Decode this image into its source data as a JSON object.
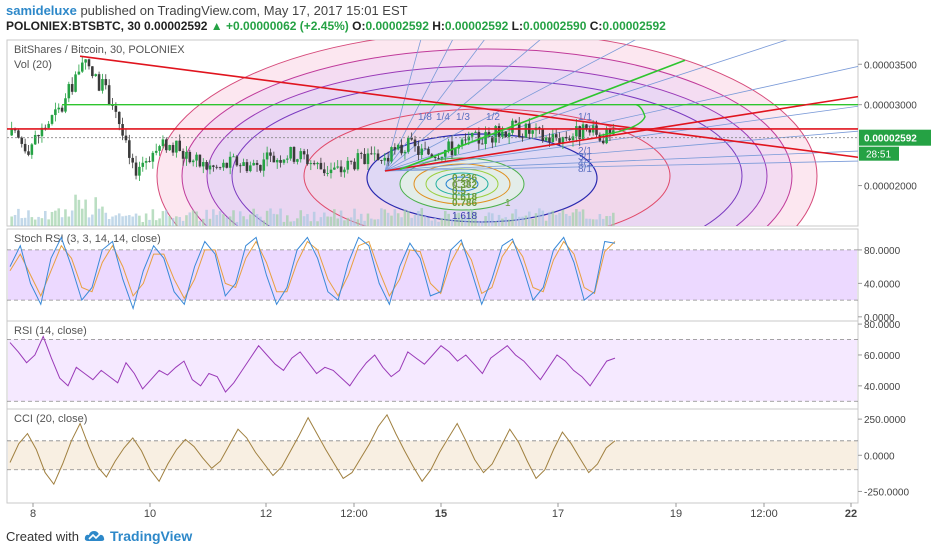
{
  "header": {
    "user": "samideluxe",
    "published_text": "published on TradingView.com, May 17, 2017 15:01 EST",
    "symbol": "POLONIEX:BTSBTC, 30",
    "price": "0.00002592",
    "change": "+0.00000062 (+2.45%)",
    "o_label": "O:",
    "o": "0.00002592",
    "h_label": "H:",
    "h": "0.00002592",
    "l_label": "L:",
    "l": "0.00002590",
    "c_label": "C:",
    "c": "0.00002592"
  },
  "footer": {
    "created": "Created with",
    "brand": "TradingView"
  },
  "colors": {
    "up": "#25a244",
    "down": "#3a3a3a",
    "accent": "#2d88c9",
    "trend_red": "#e0141e",
    "trend_green": "#2ec52e",
    "stoch_band": "#e6ccff",
    "rsi_band": "#f2e2ff",
    "cci_band": "#f5ead8"
  },
  "chart_data": [
    {
      "type": "candlestick",
      "title": "BitShares / Bitcoin, 30, POLONIEX",
      "subtitle": "Vol (20)",
      "y_ticks": [
        "0.00003500",
        "0.00003000",
        "0.00002000"
      ],
      "ylim": [
        1.5e-05,
        3.8e-05
      ],
      "last_price_label": "0.00002592",
      "countdown_label": "28:51",
      "last_price": 2.592e-05,
      "x_ticks": [
        "8",
        "10",
        "12",
        "12:00",
        "15",
        "17",
        "19",
        "12:00",
        "22"
      ],
      "horizontal_levels": [
        3e-05,
        2.7e-05
      ],
      "fan_labels": [
        "1/8",
        "1/4",
        "1/3",
        "1/2",
        "1/1",
        "2/1",
        "3/1",
        "4/1",
        "8/1"
      ],
      "fib_labels": [
        "0.236",
        "0.382",
        "0.5",
        "0.618",
        "0.786",
        "1",
        "1.618"
      ],
      "series_close": [
        2.62e-05,
        2.48e-05,
        2.75e-05,
        2.98e-05,
        3.52e-05,
        3.3e-05,
        3e-05,
        2.18e-05,
        2.38e-05,
        2.52e-05,
        2.4e-05,
        2.26e-05,
        2.21e-05,
        2.3e-05,
        2.25e-05,
        2.32e-05,
        2.4e-05,
        2.36e-05,
        2.22e-05,
        2.18e-05,
        2.31e-05,
        2.29e-05,
        2.36e-05,
        2.5e-05,
        2.4e-05,
        2.44e-05,
        2.48e-05,
        2.57e-05,
        2.62e-05,
        2.72e-05,
        2.68e-05,
        2.59e-05,
        2.6e-05,
        2.66e-05,
        2.63e-05,
        2.59e-05
      ]
    },
    {
      "type": "line",
      "title": "Stoch RSI (3, 3, 14, 14, close)",
      "y_ticks": [
        "80.0000",
        "40.0000",
        "0.0000"
      ],
      "ylim": [
        -5,
        105
      ],
      "band": [
        20,
        80
      ],
      "k": [
        60,
        85,
        40,
        15,
        70,
        95,
        60,
        20,
        35,
        80,
        90,
        45,
        10,
        55,
        85,
        70,
        30,
        15,
        60,
        90,
        75,
        25,
        40,
        85,
        95,
        50,
        15,
        35,
        80,
        95,
        70,
        30,
        20,
        65,
        95,
        85,
        40,
        15,
        60,
        88,
        70,
        25,
        30,
        80,
        92,
        55,
        15,
        45,
        85,
        93,
        60,
        20,
        35,
        80,
        95,
        65,
        20,
        30,
        90,
        88
      ],
      "d": [
        55,
        75,
        50,
        25,
        55,
        85,
        70,
        35,
        30,
        65,
        85,
        60,
        25,
        40,
        75,
        75,
        45,
        22,
        45,
        80,
        80,
        40,
        35,
        70,
        90,
        65,
        30,
        30,
        65,
        90,
        80,
        45,
        25,
        50,
        85,
        90,
        55,
        25,
        45,
        80,
        78,
        40,
        28,
        65,
        88,
        68,
        28,
        35,
        72,
        90,
        72,
        35,
        30,
        68,
        90,
        75,
        35,
        28,
        78,
        90
      ]
    },
    {
      "type": "line",
      "title": "RSI (14, close)",
      "y_ticks": [
        "80.0000",
        "60.0000",
        "40.0000"
      ],
      "ylim": [
        25,
        82
      ],
      "band": [
        30,
        70
      ],
      "values": [
        68,
        62,
        55,
        60,
        72,
        58,
        45,
        40,
        52,
        48,
        44,
        50,
        46,
        42,
        55,
        48,
        38,
        44,
        50,
        47,
        52,
        56,
        44,
        40,
        48,
        46,
        36,
        42,
        50,
        58,
        66,
        60,
        54,
        50,
        58,
        62,
        55,
        48,
        52,
        50,
        45,
        40,
        48,
        55,
        60,
        52,
        46,
        50,
        62,
        58,
        54,
        60,
        66,
        62,
        56,
        60,
        54,
        48,
        58,
        62,
        66,
        60,
        56,
        50,
        44,
        52,
        60,
        56,
        50,
        46,
        40,
        48,
        56,
        58
      ]
    },
    {
      "type": "line",
      "title": "CCI (20, close)",
      "y_ticks": [
        "250.0000",
        "0.0000",
        "-250.0000"
      ],
      "ylim": [
        -330,
        320
      ],
      "band": [
        -100,
        100
      ],
      "values": [
        -50,
        80,
        150,
        40,
        -120,
        -200,
        -60,
        100,
        220,
        60,
        -80,
        -150,
        -40,
        50,
        120,
        30,
        -100,
        -180,
        -60,
        40,
        110,
        60,
        -20,
        -90,
        -40,
        70,
        180,
        120,
        20,
        -60,
        -140,
        -80,
        30,
        140,
        260,
        150,
        40,
        -60,
        -160,
        -120,
        -20,
        80,
        200,
        280,
        150,
        30,
        -80,
        -180,
        -100,
        20,
        120,
        220,
        100,
        -30,
        -120,
        -60,
        60,
        180,
        90,
        -40,
        -160,
        -100,
        40,
        160,
        80,
        -20,
        -120,
        -60,
        50,
        100
      ]
    }
  ]
}
